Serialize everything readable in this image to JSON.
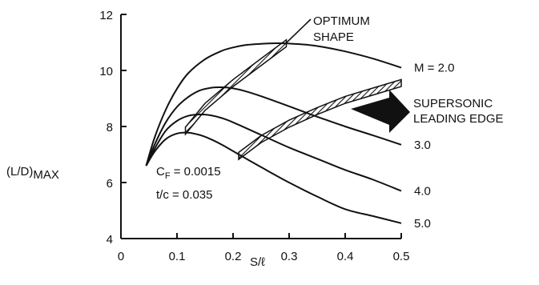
{
  "chart_data": {
    "type": "line",
    "xlabel": "S/ℓ",
    "ylabel_main": "(L/D)",
    "ylabel_sub": "MAX",
    "xlim": [
      0,
      0.5
    ],
    "ylim": [
      4,
      12
    ],
    "xticks": [
      0,
      0.1,
      0.2,
      0.3,
      0.4,
      0.5
    ],
    "xtick_labels": [
      "0",
      "0.1",
      "0.2",
      "0.3",
      "0.4",
      "0.5"
    ],
    "yticks": [
      4,
      6,
      8,
      10,
      12
    ],
    "ytick_labels": [
      "4",
      "6",
      "8",
      "10",
      "12"
    ],
    "grid": false,
    "series": [
      {
        "name": "M = 2.0",
        "x": [
          0.045,
          0.06,
          0.08,
          0.1,
          0.12,
          0.15,
          0.18,
          0.2,
          0.22,
          0.25,
          0.28,
          0.3,
          0.33,
          0.36,
          0.4,
          0.45,
          0.5
        ],
        "y": [
          6.6,
          7.6,
          8.6,
          9.35,
          9.9,
          10.4,
          10.7,
          10.82,
          10.9,
          10.95,
          10.97,
          10.96,
          10.92,
          10.84,
          10.68,
          10.42,
          10.1
        ]
      },
      {
        "name": "3.0",
        "x": [
          0.045,
          0.06,
          0.08,
          0.1,
          0.12,
          0.14,
          0.16,
          0.18,
          0.2,
          0.22,
          0.25,
          0.3,
          0.35,
          0.4,
          0.45,
          0.5
        ],
        "y": [
          6.6,
          7.35,
          8.15,
          8.7,
          9.05,
          9.28,
          9.38,
          9.4,
          9.36,
          9.27,
          9.08,
          8.72,
          8.35,
          8.0,
          7.68,
          7.35
        ]
      },
      {
        "name": "4.0",
        "x": [
          0.045,
          0.06,
          0.08,
          0.1,
          0.12,
          0.14,
          0.16,
          0.18,
          0.2,
          0.25,
          0.3,
          0.35,
          0.4,
          0.45,
          0.5
        ],
        "y": [
          6.6,
          7.2,
          7.85,
          8.2,
          8.38,
          8.43,
          8.4,
          8.3,
          8.15,
          7.7,
          7.25,
          6.85,
          6.45,
          6.1,
          5.7
        ]
      },
      {
        "name": "5.0",
        "x": [
          0.045,
          0.06,
          0.08,
          0.1,
          0.12,
          0.14,
          0.16,
          0.18,
          0.2,
          0.25,
          0.3,
          0.35,
          0.4,
          0.45,
          0.5
        ],
        "y": [
          6.6,
          7.1,
          7.55,
          7.75,
          7.78,
          7.7,
          7.55,
          7.35,
          7.12,
          6.55,
          6.0,
          5.5,
          5.05,
          4.8,
          4.55
        ]
      }
    ],
    "bands": [
      {
        "name": "optimum-shape",
        "x": [
          0.115,
          0.15,
          0.2,
          0.25,
          0.295
        ],
        "y": [
          7.85,
          8.7,
          9.55,
          10.3,
          10.97
        ],
        "width": 0.25
      },
      {
        "name": "supersonic-leading-edge",
        "x": [
          0.21,
          0.25,
          0.3,
          0.35,
          0.4,
          0.45,
          0.5
        ],
        "y": [
          6.95,
          7.55,
          8.1,
          8.55,
          8.95,
          9.25,
          9.55
        ],
        "width": 0.25
      }
    ],
    "annotations": {
      "optimum_line1": "OPTIMUM",
      "optimum_line2": "SHAPE",
      "supersonic_line1": "SUPERSONIC",
      "supersonic_line2": "LEADING EDGE",
      "cf_main": "C",
      "cf_sub": "F",
      "cf_value": " = 0.0015",
      "tc_text": "t/c = 0.035"
    }
  }
}
